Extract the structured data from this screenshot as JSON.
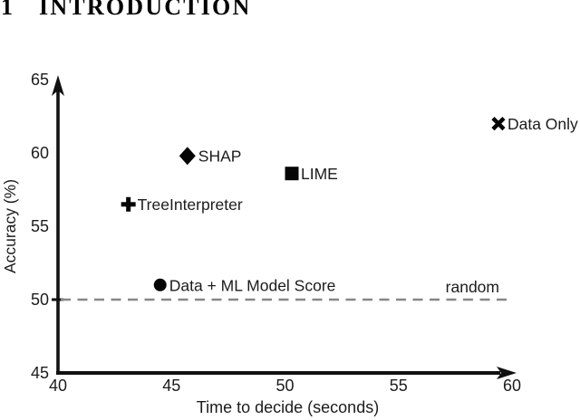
{
  "heading": {
    "number": "1",
    "title": "INTRODUCTION"
  },
  "colors": {
    "text": "#1c1c1c",
    "axis": "#111111",
    "marker": "#050505",
    "dashed_line": "#878787",
    "background": "#ffffff"
  },
  "chart_data": {
    "type": "scatter",
    "title": "",
    "xlabel": "Time to decide (seconds)",
    "ylabel": "Accuracy (%)",
    "xlim": [
      40,
      60
    ],
    "ylim": [
      45,
      65
    ],
    "x_ticks": [
      40,
      45,
      50,
      55,
      60
    ],
    "y_ticks": [
      45,
      50,
      55,
      60,
      65
    ],
    "grid": false,
    "legend": "labels-next-to-points",
    "points": [
      {
        "label": "SHAP",
        "marker": "diamond",
        "x": 45.7,
        "y": 59.8
      },
      {
        "label": "LIME",
        "marker": "square",
        "x": 50.3,
        "y": 58.6
      },
      {
        "label": "TreeInterpreter",
        "marker": "plus",
        "x": 43.1,
        "y": 56.5
      },
      {
        "label": "Data + ML Model Score",
        "marker": "circle",
        "x": 44.5,
        "y": 51.0
      },
      {
        "label": "Data Only",
        "marker": "x",
        "x": 59.4,
        "y": 62.0
      }
    ],
    "reference_line": {
      "label": "random",
      "y": 50,
      "style": "dashed"
    }
  }
}
